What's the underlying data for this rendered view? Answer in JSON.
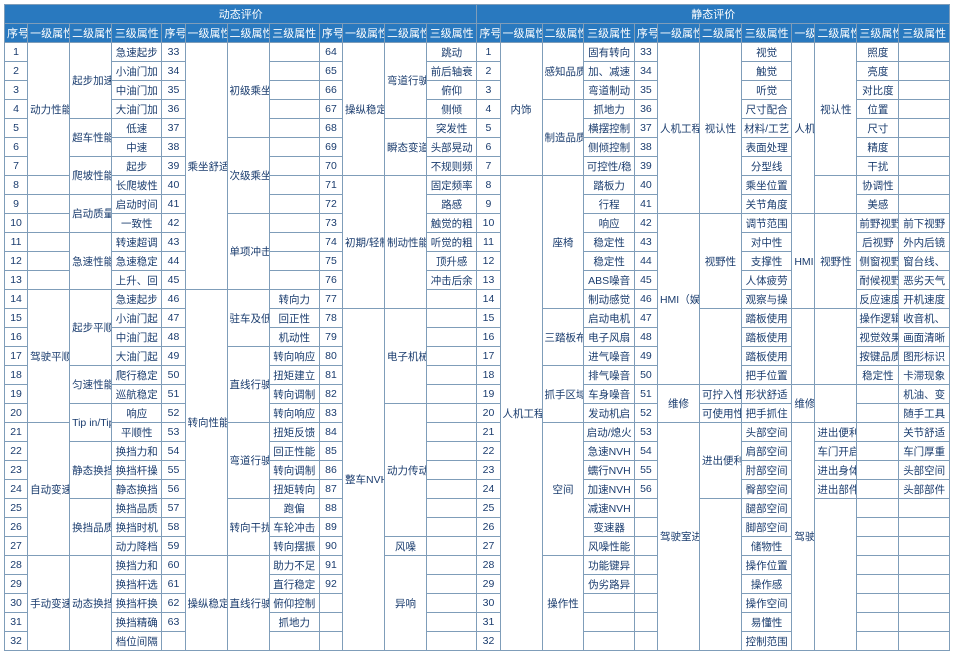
{
  "colors": {
    "header_bg": "#2979bf",
    "header_fg": "#ffffff",
    "border": "#7f9db9",
    "cell_fg": "#1a3c6e"
  },
  "hdr": {
    "dyn": "动态评价",
    "stat": "静态评价",
    "seq": "序号",
    "l1": "一级属性",
    "l2": "二级属性",
    "l3": "三级属性"
  },
  "g1": {
    "seq": [
      "1",
      "2",
      "3",
      "4",
      "5",
      "6",
      "7",
      "8",
      "9",
      "10",
      "11",
      "12",
      "13",
      "14",
      "15",
      "16",
      "17",
      "18",
      "19",
      "20",
      "21",
      "22",
      "23",
      "24",
      "25",
      "26",
      "27",
      "28",
      "29",
      "30",
      "31",
      "32"
    ],
    "l1": {
      "a": "动力性能",
      "b": "驾驶平顺性能",
      "c": "自动变速器性能",
      "d": "手动变速器"
    },
    "l2": {
      "a": "起步加速性能",
      "b": "超车性能",
      "c": "爬坡性能",
      "d": "启动质量",
      "e": "急速性能",
      "f": "起步平顺",
      "g": "匀速性能",
      "h": "Tip in/Tip",
      "i": "静态换挡",
      "j": "换挡品质",
      "k": "动态换挡"
    },
    "l3": [
      "急速起步",
      "小油门加",
      "中油门加",
      "大油门加",
      "低速",
      "中速",
      "起步",
      "长爬坡性",
      "启动时间",
      "一致性",
      "转速超调",
      "急速稳定",
      "上升、回",
      "急速起步",
      "小油门起",
      "中油门起",
      "大油门起",
      "爬行稳定",
      "巡航稳定",
      "响应",
      "平顺性",
      "换挡力和",
      "换挡杆操",
      "静态换挡",
      "换挡品质",
      "换挡时机",
      "动力降档",
      "换挡力和",
      "换挡杆选",
      "换挡杆换",
      "换挡精确",
      "档位间隔"
    ]
  },
  "g2": {
    "seq": [
      "33",
      "34",
      "35",
      "36",
      "37",
      "38",
      "39",
      "40",
      "41",
      "42",
      "43",
      "44",
      "45",
      "46",
      "47",
      "48",
      "49",
      "50",
      "51",
      "52",
      "53",
      "54",
      "55",
      "56",
      "57",
      "58",
      "59",
      "60",
      "61",
      "62",
      "63"
    ],
    "l1": {
      "a": "乘坐舒适性",
      "b": "转向性能",
      "c": "操纵稳定性"
    },
    "l2": {
      "a": "初级乘坐性能",
      "b": "次级乘坐性能",
      "c": "单项冲击",
      "d": "驻车及低速性能",
      "e": "直线行驶控制能力",
      "f": "弯道行驶控制能力",
      "g": "转向干扰",
      "h": "直线行驶稳定性"
    },
    "l3": [
      "",
      "",
      "",
      "",
      "",
      "",
      "",
      "",
      "",
      "",
      "",
      "",
      "",
      "转向力",
      "回正性",
      "机动性",
      "转向响应",
      "扭矩建立",
      "转向调制",
      "转向响应",
      "扭矩反馈",
      "回正性能",
      "转向调制",
      "扭矩转向",
      "跑偏",
      "车轮冲击",
      "转向摆振",
      "助力不足",
      "直行稳定",
      "俯仰控制",
      "抓地力"
    ]
  },
  "g3": {
    "seq": [
      "64",
      "65",
      "66",
      "67",
      "68",
      "69",
      "70",
      "71",
      "72",
      "73",
      "74",
      "75",
      "76",
      "77",
      "78",
      "79",
      "80",
      "81",
      "82",
      "83",
      "84",
      "85",
      "86",
      "87",
      "88",
      "89",
      "90",
      "91",
      "92"
    ],
    "l3": [
      "跳动",
      "前后轴衰",
      "俯仰",
      "侧倾",
      "突发性",
      "头部晃动",
      "不规则频",
      "固定频率",
      "路感",
      "触觉的粗",
      "听觉的粗",
      "顶升感",
      "冲击后余",
      "",
      "",
      "",
      "",
      "",
      "",
      "",
      "",
      "",
      "",
      "",
      "",
      "",
      "",
      "",
      ""
    ]
  },
  "g4": {
    "l1": {
      "a": "操纵稳定性",
      "b": "初期/轻制动性能",
      "c": "整车NVH"
    },
    "l2": {
      "a": "弯道行驶稳定性",
      "b": "瞬态变道稳定性",
      "c": "制动性能",
      "d": "电子机械NVH",
      "e": "动力传动NVH",
      "f": "异响"
    },
    "l3": [
      "固有转向",
      "加、减速",
      "弯道制动",
      "抓地力",
      "横摆控制",
      "侧倾控制",
      "可控性/稳",
      "踏板力",
      "行程",
      "响应",
      "稳定性",
      "稳定性",
      "ABS噪音",
      "制动感觉",
      "启动电机",
      "电子风扇",
      "进气噪音",
      "排气噪音",
      "车身噪音",
      "发动机启",
      "启动/熄火",
      "急速NVH",
      "蠕行NVH",
      "加速NVH",
      "减速NVH",
      "变速器",
      "风噪性能",
      "功能键异",
      "伪劣路异"
    ]
  },
  "g5": {
    "seq": [
      "1",
      "2",
      "3",
      "4",
      "5",
      "6",
      "7",
      "8",
      "9",
      "10",
      "11",
      "12",
      "13",
      "14",
      "15",
      "16",
      "17",
      "18",
      "19",
      "20",
      "21",
      "22",
      "23",
      "24",
      "25",
      "26",
      "27",
      "28",
      "29",
      "30",
      "31",
      "32"
    ],
    "l1": {
      "a": "内饰",
      "b": "人机工程"
    },
    "l2": {
      "a": "感知品质",
      "b": "制造品质",
      "c": "座椅",
      "d": "三踏板布置",
      "e": "抓手区域",
      "f": "空间",
      "g": "操作性"
    },
    "l3": [
      "视觉",
      "触觉",
      "听觉",
      "尺寸配合",
      "材料/工艺",
      "表面处理",
      "分型线",
      "乘坐位置",
      "关节角度",
      "调节范围",
      "对中性",
      "支撑性",
      "人体疲劳",
      "观察与操",
      "踏板使用",
      "踏板使用",
      "踏板使用",
      "把手位置",
      "形状舒适",
      "把手抓住",
      "头部空间",
      "肩部空间",
      "肘部空间",
      "臀部空间",
      "腿部空间",
      "脚部空间",
      "储物性",
      "操作位置",
      "操作感",
      "操作空间",
      "易懂性",
      "控制范围"
    ]
  },
  "g6": {
    "seq": [
      "33",
      "34",
      "35",
      "36",
      "37",
      "38",
      "39",
      "40",
      "41",
      "42",
      "43",
      "44",
      "45",
      "46",
      "47",
      "48",
      "49",
      "50",
      "51",
      "52",
      "53",
      "54",
      "55",
      "56"
    ],
    "l1": {
      "a": "人机工程",
      "b": "HMI（娱乐系统）",
      "c": "维修",
      "d": "驾驶室进出方便性"
    },
    "l2": {
      "a": "视认性",
      "b": "视野性",
      "c": "可拧入性",
      "d": "可使用性",
      "e": "进出便利",
      "f": "车门开启",
      "g": "进出身体",
      "h": "进出部件"
    },
    "l3": [
      "照度",
      "亮度",
      "对比度",
      "位置",
      "尺寸",
      "精度",
      "干扰",
      "协调性",
      "美感",
      "前野视野",
      "后视野",
      "侧窗视野",
      "耐候视野",
      "反应速度",
      "操作逻辑",
      "视觉效果",
      "按键品质",
      "稳定性",
      "",
      "",
      "",
      "",
      "",
      ""
    ]
  },
  "g7": {
    "l3": [
      "",
      "",
      "",
      "",
      "",
      "",
      "",
      "",
      "",
      "前下视野",
      "外内后镜",
      "窗台线、",
      "恶劣天气",
      "开机速度",
      "收音机、",
      "画面清晰",
      "图形标识",
      "卡滞现象",
      "机油、变",
      "随手工具",
      "关节舒适",
      "车门厚重",
      "头部空间",
      "头部部件"
    ]
  }
}
